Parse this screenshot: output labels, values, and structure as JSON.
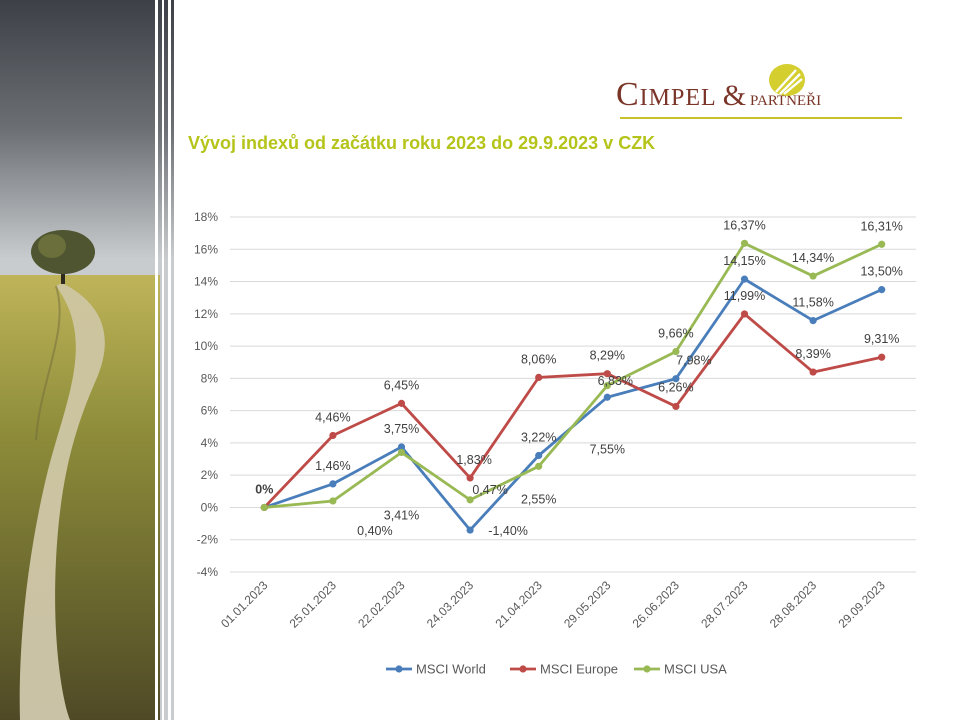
{
  "logo": {
    "main": "Cimpel",
    "amp": "&",
    "sub": "partneři",
    "brand_color": "#7a3528",
    "accent_color": "#c9c12a"
  },
  "title": "Vývoj indexů od začátku roku 2023 do 29.9.2023 v CZK",
  "chart_data": {
    "type": "line",
    "title": "Vývoj indexů od začátku roku 2023 do 29.9.2023 v CZK",
    "xlabel": "",
    "ylabel": "",
    "ylim": [
      -4,
      18
    ],
    "ytick_step": 2,
    "y_unit": "%",
    "grid": true,
    "legend_position": "bottom",
    "categories": [
      "01.01.2023",
      "25.01.2023",
      "22.02.2023",
      "24.03.2023",
      "21.04.2023",
      "29.05.2023",
      "26.06.2023",
      "28.07.2023",
      "28.08.2023",
      "29.09.2023"
    ],
    "series": [
      {
        "name": "MSCI World",
        "color": "#4a7ebb",
        "values": [
          0,
          1.46,
          3.75,
          -1.4,
          3.22,
          6.83,
          7.98,
          14.15,
          11.58,
          13.5
        ],
        "labels": [
          "0%",
          "1,46%",
          "3,75%",
          "-1,40%",
          "3,22%",
          "6,83%",
          "7,98%",
          "14,15%",
          "11,58%",
          "13,50%"
        ]
      },
      {
        "name": "MSCI Europe",
        "color": "#be4b48",
        "values": [
          0,
          4.46,
          6.45,
          1.83,
          8.06,
          8.29,
          6.26,
          11.99,
          8.39,
          9.31
        ],
        "labels": [
          "0%",
          "4,46%",
          "6,45%",
          "1,83%",
          "8,06%",
          "8,29%",
          "6,26%",
          "11,99%",
          "8,39%",
          "9,31%"
        ]
      },
      {
        "name": "MSCI USA",
        "color": "#98b954",
        "values": [
          0,
          0.4,
          3.41,
          0.47,
          2.55,
          7.55,
          9.66,
          16.37,
          14.34,
          16.31
        ],
        "labels": [
          "0%",
          "0,40%",
          "3,41%",
          "0,47%",
          "2,55%",
          "7,55%",
          "9,66%",
          "16,37%",
          "14,34%",
          "16,31%"
        ]
      }
    ]
  }
}
